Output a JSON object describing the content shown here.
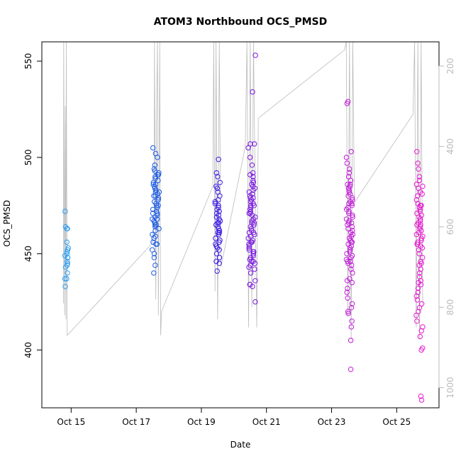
{
  "chart_data": {
    "type": "scatter",
    "title": "ATOM3 Northbound OCS_PMSD",
    "xlabel": "Date",
    "ylabel": "OCS_PMSD",
    "x_ticks": [
      "Oct 15",
      "Oct 17",
      "Oct 19",
      "Oct 21",
      "Oct 23",
      "Oct 25"
    ],
    "x_tick_days": [
      15,
      17,
      19,
      21,
      23,
      25
    ],
    "xlim_days": [
      14.1,
      26.3
    ],
    "y_ticks": [
      400,
      450,
      500,
      550
    ],
    "ylim": [
      370,
      560
    ],
    "y2_ticks": [
      200,
      400,
      600,
      800,
      1000
    ],
    "y2lim": [
      1050,
      140
    ],
    "grid": false,
    "legend": "none",
    "colors": {
      "group1": "#2a9df4",
      "group2": "#1c5ce6",
      "group3": "#3a1ae8",
      "group4": "#7a18e0",
      "group5": "#c21ad8",
      "group6": "#e71ad0",
      "line": "#bbbbbb"
    },
    "series": [
      {
        "color_key": "group1",
        "center_day": 14.85,
        "spread": 0.06,
        "values": [
          463,
          464,
          456,
          453,
          451,
          450,
          449,
          448,
          446,
          445,
          444,
          443,
          440,
          437,
          437,
          433,
          472,
          463,
          452,
          448
        ]
      },
      {
        "color_key": "group2",
        "center_day": 17.6,
        "spread": 0.11,
        "values": [
          505,
          502,
          500,
          496,
          494,
          493,
          492,
          491,
          490,
          489,
          488,
          487,
          486,
          485,
          484,
          483,
          482,
          482,
          481,
          480,
          480,
          479,
          478,
          477,
          476,
          475,
          474,
          473,
          472,
          471,
          470,
          469,
          468,
          467,
          466,
          465,
          464,
          463,
          462,
          460,
          458,
          456,
          455,
          452,
          450,
          448,
          444,
          440,
          491,
          486,
          483,
          478,
          475,
          471,
          468,
          465,
          459,
          455
        ]
      },
      {
        "color_key": "group3",
        "center_day": 19.5,
        "spread": 0.08,
        "values": [
          499,
          492,
          490,
          487,
          485,
          482,
          480,
          478,
          476,
          475,
          474,
          473,
          472,
          470,
          469,
          468,
          467,
          466,
          465,
          464,
          463,
          462,
          461,
          460,
          458,
          457,
          455,
          454,
          453,
          452,
          450,
          448,
          446,
          445,
          441,
          484,
          477,
          471,
          466,
          461,
          456
        ]
      },
      {
        "color_key": "group4",
        "center_day": 20.55,
        "spread": 0.11,
        "values": [
          553,
          534,
          507,
          507,
          505,
          500,
          496,
          492,
          490,
          488,
          486,
          485,
          484,
          483,
          482,
          481,
          480,
          479,
          478,
          477,
          476,
          475,
          474,
          473,
          472,
          471,
          470,
          469,
          468,
          467,
          466,
          465,
          464,
          463,
          462,
          461,
          460,
          459,
          458,
          457,
          456,
          455,
          454,
          453,
          452,
          451,
          450,
          449,
          448,
          447,
          446,
          445,
          444,
          443,
          442,
          440,
          436,
          434,
          434,
          433,
          425,
          491,
          487,
          479,
          475,
          471,
          466,
          461,
          456,
          451,
          446
        ]
      },
      {
        "color_key": "group5",
        "center_day": 23.55,
        "spread": 0.1,
        "values": [
          529,
          528,
          503,
          500,
          497,
          494,
          492,
          490,
          488,
          486,
          485,
          484,
          483,
          482,
          481,
          480,
          479,
          478,
          477,
          476,
          475,
          474,
          473,
          472,
          471,
          470,
          469,
          468,
          467,
          466,
          465,
          464,
          463,
          462,
          461,
          460,
          459,
          458,
          457,
          456,
          455,
          454,
          453,
          452,
          451,
          450,
          449,
          448,
          447,
          446,
          445,
          444,
          442,
          440,
          437,
          435,
          432,
          430,
          427,
          424,
          422,
          420,
          419,
          415,
          412,
          405,
          390,
          486,
          476,
          466,
          456,
          446,
          436
        ]
      },
      {
        "color_key": "group6",
        "center_day": 25.7,
        "spread": 0.1,
        "values": [
          503,
          497,
          494,
          490,
          488,
          486,
          484,
          482,
          481,
          480,
          478,
          476,
          475,
          474,
          473,
          472,
          471,
          470,
          469,
          468,
          467,
          466,
          465,
          464,
          463,
          462,
          461,
          460,
          459,
          458,
          457,
          456,
          455,
          454,
          453,
          452,
          450,
          448,
          446,
          444,
          442,
          440,
          438,
          436,
          434,
          432,
          430,
          428,
          426,
          424,
          422,
          420,
          418,
          415,
          412,
          410,
          407,
          401,
          400,
          376,
          374,
          485,
          475,
          465,
          455,
          445,
          435
        ]
      }
    ],
    "right_axis_line": [
      {
        "day": 14.76,
        "value": 790
      },
      {
        "day": 14.77,
        "value": 140
      },
      {
        "day": 14.8,
        "value": 820
      },
      {
        "day": 14.82,
        "value": 300
      },
      {
        "day": 14.84,
        "value": 830
      },
      {
        "day": 14.85,
        "value": 140
      },
      {
        "day": 14.88,
        "value": 870
      },
      {
        "day": 17.5,
        "value": 640
      },
      {
        "day": 17.55,
        "value": 550
      },
      {
        "day": 17.56,
        "value": 140
      },
      {
        "day": 17.6,
        "value": 780
      },
      {
        "day": 17.62,
        "value": 350
      },
      {
        "day": 17.65,
        "value": 140
      },
      {
        "day": 17.68,
        "value": 820
      },
      {
        "day": 17.72,
        "value": 140
      },
      {
        "day": 17.75,
        "value": 870
      },
      {
        "day": 17.78,
        "value": 810
      },
      {
        "day": 19.35,
        "value": 500
      },
      {
        "day": 19.38,
        "value": 140
      },
      {
        "day": 19.42,
        "value": 760
      },
      {
        "day": 19.45,
        "value": 140
      },
      {
        "day": 19.5,
        "value": 830
      },
      {
        "day": 19.55,
        "value": 140
      },
      {
        "day": 19.6,
        "value": 700
      },
      {
        "day": 20.35,
        "value": 400
      },
      {
        "day": 20.4,
        "value": 140
      },
      {
        "day": 20.45,
        "value": 850
      },
      {
        "day": 20.5,
        "value": 140
      },
      {
        "day": 20.55,
        "value": 800
      },
      {
        "day": 20.6,
        "value": 140
      },
      {
        "day": 20.7,
        "value": 850
      },
      {
        "day": 20.75,
        "value": 330
      },
      {
        "day": 23.4,
        "value": 160
      },
      {
        "day": 23.45,
        "value": 140
      },
      {
        "day": 23.5,
        "value": 820
      },
      {
        "day": 23.55,
        "value": 140
      },
      {
        "day": 23.6,
        "value": 880
      },
      {
        "day": 23.65,
        "value": 140
      },
      {
        "day": 23.7,
        "value": 540
      },
      {
        "day": 25.5,
        "value": 320
      },
      {
        "day": 25.55,
        "value": 140
      },
      {
        "day": 25.6,
        "value": 850
      },
      {
        "day": 25.65,
        "value": 140
      },
      {
        "day": 25.7,
        "value": 880
      },
      {
        "day": 25.75,
        "value": 140
      },
      {
        "day": 25.8,
        "value": 800
      }
    ]
  }
}
